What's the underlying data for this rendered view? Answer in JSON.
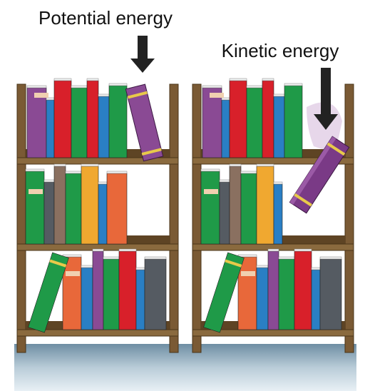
{
  "labels": {
    "potential": "Potential energy",
    "kinetic": "Kinetic energy"
  }
}
